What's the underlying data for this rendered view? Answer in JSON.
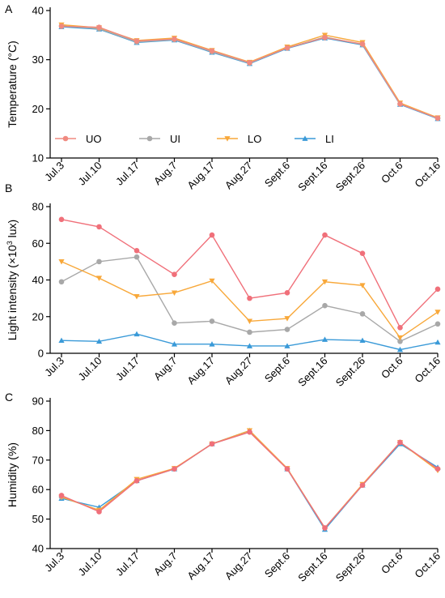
{
  "chart_data": [
    {
      "panel_label": "A",
      "type": "line",
      "categories": [
        "Jul.3",
        "Jul.10",
        "Jul.17",
        "Aug.7",
        "Aug.17",
        "Aug.27",
        "Sept.6",
        "Sept.16",
        "Sept.26",
        "Oct.6",
        "Oct.16"
      ],
      "ylabel_main": "Temperature (",
      "ylabel_unit": "°C)",
      "ylim": [
        10,
        40
      ],
      "yticks": [
        10,
        20,
        30,
        40
      ],
      "legend": "bottom",
      "series": [
        {
          "name": "UO",
          "color": "#F08A80",
          "marker": "circle",
          "values": [
            36.8,
            36.6,
            33.8,
            34.2,
            31.8,
            29.4,
            32.4,
            34.5,
            33.2,
            21.0,
            18.1
          ]
        },
        {
          "name": "UI",
          "color": "#A8A8A8",
          "marker": "circle",
          "values": [
            36.9,
            36.3,
            33.6,
            34.1,
            31.6,
            29.3,
            32.4,
            34.6,
            33.1,
            21.0,
            18.1
          ]
        },
        {
          "name": "LO",
          "color": "#F8A83A",
          "marker": "triangle-down",
          "values": [
            37.1,
            36.5,
            33.9,
            34.4,
            31.9,
            29.5,
            32.6,
            35.0,
            33.5,
            21.2,
            18.2
          ]
        },
        {
          "name": "LI",
          "color": "#3A9AD8",
          "marker": "triangle-up",
          "values": [
            36.7,
            36.2,
            33.5,
            34.0,
            31.5,
            29.2,
            32.3,
            34.4,
            33.0,
            20.9,
            18.0
          ]
        }
      ]
    },
    {
      "panel_label": "B",
      "type": "line",
      "categories": [
        "Jul.3",
        "Jul.10",
        "Jul.17",
        "Aug.7",
        "Aug.17",
        "Aug.27",
        "Sept.6",
        "Sept.16",
        "Sept.26",
        "Oct.6",
        "Oct.16"
      ],
      "ylabel_main": "Light intensity (×10",
      "ylabel_sup": "3",
      "ylabel_unit": " lux)",
      "ylim": [
        0,
        80
      ],
      "yticks": [
        0,
        20,
        40,
        60,
        80
      ],
      "series": [
        {
          "name": "UO",
          "color": "#F0707A",
          "marker": "circle",
          "values": [
            73.0,
            69.0,
            56.0,
            43.0,
            64.5,
            30.0,
            33.0,
            64.5,
            54.5,
            14.0,
            35.0
          ]
        },
        {
          "name": "UI",
          "color": "#A8A8A8",
          "marker": "circle",
          "values": [
            39.0,
            50.0,
            52.5,
            16.5,
            17.5,
            11.5,
            13.0,
            26.0,
            21.5,
            6.5,
            16.0
          ]
        },
        {
          "name": "LO",
          "color": "#F8A83A",
          "marker": "triangle-down",
          "values": [
            50.0,
            41.0,
            31.0,
            33.0,
            39.5,
            17.5,
            19.0,
            39.0,
            37.0,
            8.5,
            22.5
          ]
        },
        {
          "name": "LI",
          "color": "#3A9AD8",
          "marker": "triangle-up",
          "values": [
            7.0,
            6.5,
            10.5,
            5.0,
            5.0,
            4.0,
            4.0,
            7.5,
            7.0,
            2.0,
            6.0
          ]
        }
      ]
    },
    {
      "panel_label": "C",
      "type": "line",
      "categories": [
        "Jul.3",
        "Jul.10",
        "Jul.17",
        "Aug.7",
        "Aug.17",
        "Aug.27",
        "Sept.6",
        "Sept.16",
        "Sept.26",
        "Oct.6",
        "Oct.16"
      ],
      "ylabel_main": "Humidity (%)",
      "ylim": [
        40,
        90
      ],
      "yticks": [
        40,
        50,
        60,
        70,
        80,
        90
      ],
      "series": [
        {
          "name": "UO",
          "color": "#F0707A",
          "marker": "circle",
          "values": [
            58.0,
            52.5,
            63.0,
            67.0,
            75.5,
            79.5,
            67.0,
            47.0,
            61.5,
            76.0,
            67.0
          ]
        },
        {
          "name": "UI",
          "color": "#A8A8A8",
          "marker": "circle",
          "values": [
            57.5,
            53.0,
            63.0,
            67.0,
            75.5,
            79.5,
            67.0,
            47.0,
            61.5,
            76.0,
            67.0
          ]
        },
        {
          "name": "LO",
          "color": "#F8A83A",
          "marker": "triangle-down",
          "values": [
            57.5,
            53.0,
            63.5,
            67.2,
            75.5,
            80.0,
            67.2,
            47.0,
            61.8,
            76.0,
            66.5
          ]
        },
        {
          "name": "LI",
          "color": "#3A9AD8",
          "marker": "triangle-up",
          "values": [
            57.0,
            54.0,
            63.0,
            67.0,
            75.5,
            80.0,
            67.0,
            46.5,
            61.5,
            75.5,
            67.5
          ]
        }
      ]
    }
  ]
}
